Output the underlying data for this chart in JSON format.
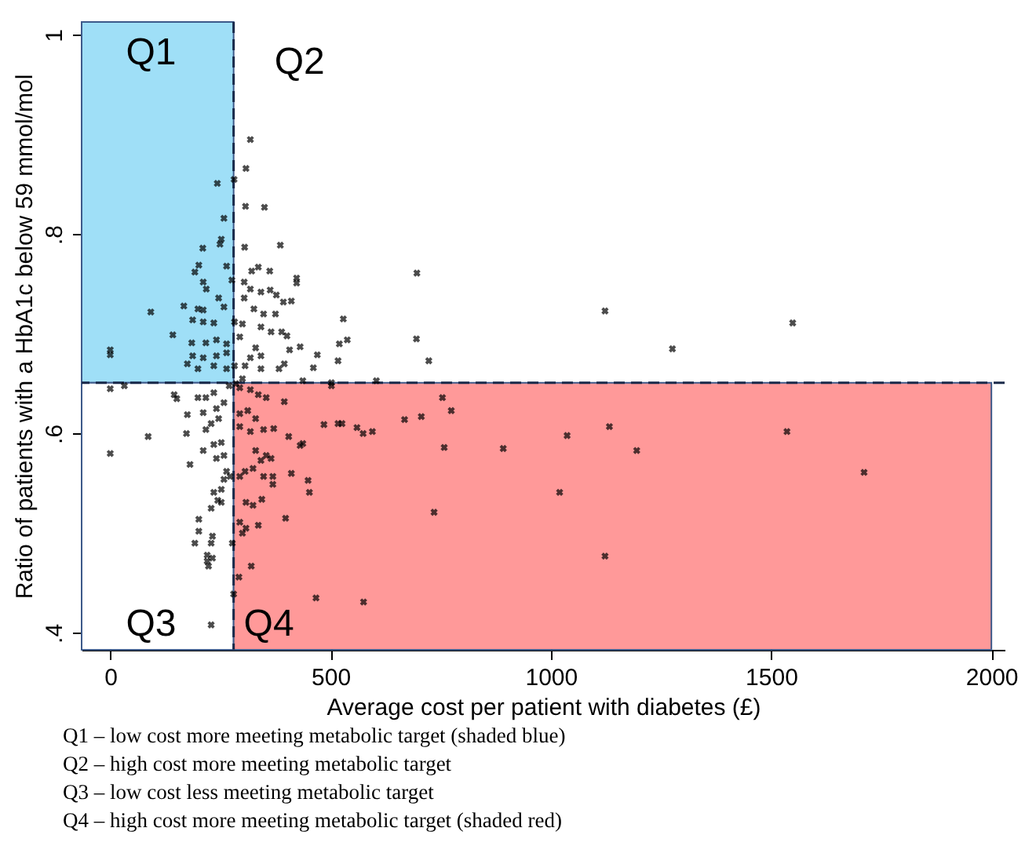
{
  "chart_data": {
    "type": "scatter",
    "xlabel": "Average cost per patient with diabetes (£)",
    "ylabel": "Ratio of patients with a HbA1c below 59 mmol/mol",
    "xlim": [
      -65,
      2030
    ],
    "ylim": [
      0.383,
      1.013
    ],
    "xticks": [
      0,
      500,
      1000,
      1500,
      2000
    ],
    "yticks": [
      {
        "value": 0.4,
        "label": ".4"
      },
      {
        "value": 0.6,
        "label": ".6"
      },
      {
        "value": 0.8,
        "label": ".8"
      },
      {
        "value": 1,
        "label": "1"
      }
    ],
    "marker": "cross",
    "series": [
      {
        "color": "#000000",
        "x": [
          318,
          308,
          243,
          281,
          307,
          350,
          258,
          252,
          249,
          210,
          305,
          386,
          201,
          192,
          264,
          336,
          321,
          362,
          211,
          218,
          276,
          304,
          423,
          423,
          318,
          342,
          363,
          246,
          304,
          377,
          393,
          411,
          92,
          167,
          199,
          211,
          258,
          326,
          348,
          375,
          529,
          187,
          211,
          235,
          282,
          300,
          142,
          342,
          365,
          389,
          401,
          185,
          217,
          241,
          264,
          294,
          520,
          538,
          431,
          407,
          0,
          0,
          330,
          342,
          318,
          187,
          211,
          241,
          264,
          470,
          517,
          461,
          395,
          383,
          342,
          306,
          175,
          199,
          235,
          264,
          282,
          604,
          437,
          502,
          696,
          695,
          723,
          1123,
          1276,
          1549,
          502,
          754,
          774,
          485,
          517,
          526,
          560,
          574,
          595,
          668,
          706,
          1037,
          1133,
          1536,
          758,
          892,
          1195,
          1711,
          1020,
          735,
          1123,
          575,
          467,
          0,
          32,
          0,
          86,
          145,
          151,
          175,
          173,
          181,
          199,
          217,
          235,
          211,
          241,
          258,
          217,
          229,
          246,
          211,
          235,
          252,
          241,
          258,
          264,
          258,
          272,
          235,
          252,
          244,
          229,
          252,
          201,
          201,
          232,
          229,
          192,
          277,
          220,
          232,
          223,
          220,
          280,
          229,
          294,
          318,
          336,
          354,
          395,
          294,
          312,
          330,
          294,
          348,
          371,
          318,
          405,
          431,
          437,
          330,
          354,
          342,
          365,
          306,
          324,
          294,
          348,
          369,
          369,
          411,
          449,
          452,
          308,
          324,
          344,
          398,
          294,
          308,
          300,
          336,
          320,
          292,
          270,
          285,
          300
        ],
        "values": [
          0.895,
          0.866,
          0.851,
          0.855,
          0.828,
          0.827,
          0.816,
          0.795,
          0.79,
          0.786,
          0.787,
          0.789,
          0.769,
          0.762,
          0.768,
          0.767,
          0.763,
          0.763,
          0.752,
          0.745,
          0.754,
          0.752,
          0.756,
          0.751,
          0.745,
          0.742,
          0.744,
          0.736,
          0.736,
          0.739,
          0.732,
          0.733,
          0.722,
          0.728,
          0.725,
          0.724,
          0.727,
          0.725,
          0.72,
          0.72,
          0.715,
          0.714,
          0.712,
          0.711,
          0.712,
          0.71,
          0.699,
          0.707,
          0.702,
          0.702,
          0.698,
          0.691,
          0.691,
          0.694,
          0.69,
          0.697,
          0.69,
          0.694,
          0.687,
          0.684,
          0.684,
          0.679,
          0.686,
          0.678,
          0.676,
          0.678,
          0.676,
          0.678,
          0.681,
          0.679,
          0.673,
          0.666,
          0.67,
          0.665,
          0.665,
          0.668,
          0.67,
          0.665,
          0.668,
          0.665,
          0.668,
          0.653,
          0.653,
          0.651,
          0.761,
          0.695,
          0.673,
          0.723,
          0.685,
          0.711,
          0.648,
          0.636,
          0.623,
          0.609,
          0.61,
          0.61,
          0.606,
          0.6,
          0.602,
          0.614,
          0.617,
          0.598,
          0.607,
          0.602,
          0.586,
          0.585,
          0.583,
          0.561,
          0.541,
          0.521,
          0.477,
          0.431,
          0.435,
          0.645,
          0.648,
          0.58,
          0.597,
          0.639,
          0.635,
          0.619,
          0.6,
          0.569,
          0.636,
          0.636,
          0.641,
          0.621,
          0.625,
          0.631,
          0.604,
          0.61,
          0.615,
          0.583,
          0.589,
          0.591,
          0.575,
          0.578,
          0.562,
          0.554,
          0.557,
          0.541,
          0.544,
          0.533,
          0.525,
          0.531,
          0.514,
          0.502,
          0.497,
          0.49,
          0.49,
          0.49,
          0.478,
          0.475,
          0.467,
          0.472,
          0.439,
          0.408,
          0.646,
          0.644,
          0.639,
          0.636,
          0.632,
          0.62,
          0.623,
          0.615,
          0.607,
          0.604,
          0.605,
          0.602,
          0.597,
          0.588,
          0.59,
          0.583,
          0.578,
          0.573,
          0.575,
          0.562,
          0.565,
          0.557,
          0.557,
          0.557,
          0.549,
          0.56,
          0.553,
          0.541,
          0.531,
          0.528,
          0.534,
          0.515,
          0.511,
          0.505,
          0.5,
          0.508,
          0.467,
          0.456,
          0.648,
          0.65,
          0.655
        ]
      }
    ],
    "ref_lines": [
      {
        "axis": "x",
        "value": 280,
        "label": "Q2",
        "color": "#1a2a4a",
        "line_style": "dashed"
      },
      {
        "axis": "y",
        "value": 0.651,
        "color": "#1a2a4a",
        "line_style": "dashed"
      }
    ],
    "bands": [
      {
        "axis": "y",
        "from": 0.651,
        "to": 1.013,
        "label": "Q1",
        "color": "#9fdff7"
      },
      {
        "axis": "y",
        "from": 0.383,
        "to": 0.651,
        "label": "Q3",
        "color": "#ffffff"
      },
      {
        "axis": "x",
        "from": 280,
        "to": 2000,
        "label": "Q4",
        "color": "#ff9999"
      }
    ],
    "annotations": [
      "Q1 – low cost more meeting metabolic target (shaded blue)",
      "Q2 – high cost more meeting metabolic target",
      "Q3 – low cost less meeting metabolic target",
      "Q4 – high cost more meeting metabolic target  (shaded red)"
    ]
  }
}
